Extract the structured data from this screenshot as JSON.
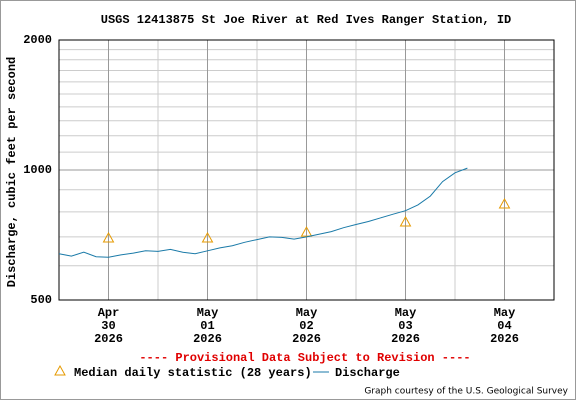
{
  "chart_data": {
    "type": "line",
    "log_y": true,
    "title": "USGS 12413875 St Joe River at Red Ives Ranger Station, ID",
    "y_label": "Discharge, cubic feet per second",
    "annotation": "---- Provisional Data Subject to Revision ----",
    "credit": "Graph courtesy of the U.S. Geological Survey",
    "xlim": [
      "2026-04-29T12:00",
      "2026-05-04T12:00"
    ],
    "xticks": [
      {
        "value": "2026-04-30T00:00",
        "label": [
          "Apr",
          "30",
          "2026"
        ]
      },
      {
        "value": "2026-05-01T00:00",
        "label": [
          "May",
          "01",
          "2026"
        ]
      },
      {
        "value": "2026-05-02T00:00",
        "label": [
          "May",
          "02",
          "2026"
        ]
      },
      {
        "value": "2026-05-03T00:00",
        "label": [
          "May",
          "03",
          "2026"
        ]
      },
      {
        "value": "2026-05-04T00:00",
        "label": [
          "May",
          "04",
          "2026"
        ]
      }
    ],
    "minor_xticks": [
      "2026-04-30T12:00",
      "2026-05-01T12:00",
      "2026-05-02T12:00",
      "2026-05-03T12:00"
    ],
    "ylim": [
      500,
      2000
    ],
    "yticks": [
      500,
      1000,
      2000
    ],
    "minor_yticks": [
      600,
      700,
      800,
      900,
      1100,
      1200,
      1300,
      1400,
      1500,
      1600,
      1700,
      1800,
      1900
    ],
    "grid": true,
    "series": [
      {
        "name": "Median daily statistic (28 years)",
        "type": "scatter",
        "marker": "triangle",
        "color": "#e69a00",
        "x": [
          "2026-04-30T00:00",
          "2026-05-01T00:00",
          "2026-05-02T00:00",
          "2026-05-03T00:00",
          "2026-05-04T00:00"
        ],
        "values": [
          696,
          696,
          718,
          758,
          834
        ]
      },
      {
        "name": "Discharge",
        "type": "line",
        "color": "#1a7aa8",
        "x": [
          "2026-04-29T12:00",
          "2026-04-29T15:00",
          "2026-04-29T18:00",
          "2026-04-29T21:00",
          "2026-04-30T00:00",
          "2026-04-30T03:00",
          "2026-04-30T06:00",
          "2026-04-30T09:00",
          "2026-04-30T12:00",
          "2026-04-30T15:00",
          "2026-04-30T18:00",
          "2026-04-30T21:00",
          "2026-05-01T00:00",
          "2026-05-01T03:00",
          "2026-05-01T06:00",
          "2026-05-01T09:00",
          "2026-05-01T12:00",
          "2026-05-01T15:00",
          "2026-05-01T18:00",
          "2026-05-01T21:00",
          "2026-05-02T00:00",
          "2026-05-02T03:00",
          "2026-05-02T06:00",
          "2026-05-02T09:00",
          "2026-05-02T12:00",
          "2026-05-02T15:00",
          "2026-05-02T18:00",
          "2026-05-02T21:00",
          "2026-05-03T00:00",
          "2026-05-03T03:00",
          "2026-05-03T06:00",
          "2026-05-03T09:00",
          "2026-05-03T12:00",
          "2026-05-03T15:00"
        ],
        "values": [
          640,
          632,
          645,
          630,
          628,
          636,
          642,
          650,
          648,
          655,
          645,
          640,
          650,
          660,
          668,
          680,
          690,
          700,
          698,
          692,
          700,
          710,
          720,
          735,
          748,
          760,
          775,
          790,
          805,
          830,
          870,
          940,
          985,
          1010
        ]
      }
    ]
  }
}
